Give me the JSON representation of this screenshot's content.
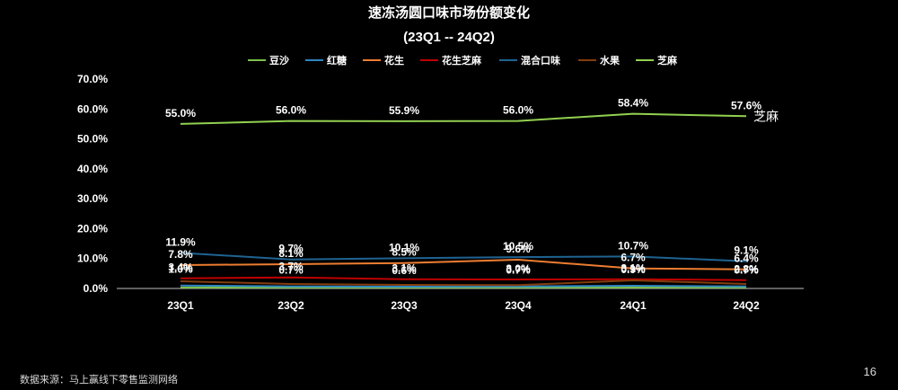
{
  "chart_data": {
    "type": "line",
    "title": "速冻汤圆口味市场份额变化",
    "subtitle": "(23Q1 -- 24Q2)",
    "categories": [
      "23Q1",
      "23Q2",
      "23Q3",
      "23Q4",
      "24Q1",
      "24Q2"
    ],
    "yticks": [
      "0.0%",
      "10.0%",
      "20.0%",
      "30.0%",
      "40.0%",
      "50.0%",
      "60.0%",
      "70.0%"
    ],
    "ylim": [
      0,
      70
    ],
    "legend_position": "top-center",
    "series": [
      {
        "name": "豆沙",
        "color": "#7CC04B",
        "values": [
          0.3,
          0.3,
          0.3,
          0.3,
          0.3,
          0.3
        ],
        "labels": [
          "",
          "",
          "",
          "",
          "",
          ""
        ]
      },
      {
        "name": "红糖",
        "color": "#2E86C1",
        "values": [
          1.0,
          0.7,
          0.6,
          0.7,
          0.9,
          0.7
        ],
        "labels": [
          "1.0%",
          "0.7%",
          "0.6%",
          "0.7%",
          "0.9%",
          "0.7%"
        ]
      },
      {
        "name": "花生",
        "color": "#ED7D31",
        "values": [
          7.8,
          8.1,
          8.5,
          9.6,
          6.7,
          6.4
        ],
        "labels": [
          "7.8%",
          "8.1%",
          "8.5%",
          "9.6%",
          "6.7%",
          "6.4%"
        ]
      },
      {
        "name": "花生芝麻",
        "color": "#C00000",
        "values": [
          3.4,
          3.7,
          3.1,
          3.0,
          3.1,
          2.8
        ],
        "labels": [
          "3.4%",
          "3.7%",
          "3.1%",
          "3.0%",
          "3.1%",
          "2.8%"
        ]
      },
      {
        "name": "混合口味",
        "color": "#1F6391",
        "values": [
          11.9,
          9.7,
          10.1,
          10.5,
          10.7,
          9.1
        ],
        "labels": [
          "11.9%",
          "9.7%",
          "10.1%",
          "10.5%",
          "10.7%",
          "9.1%"
        ]
      },
      {
        "name": "水果",
        "color": "#843C0C",
        "values": [
          2.4,
          1.5,
          1.2,
          1.1,
          2.7,
          1.5
        ],
        "labels": [
          "",
          "",
          "",
          "",
          "",
          ""
        ]
      },
      {
        "name": "芝麻",
        "color": "#92D050",
        "values": [
          55.0,
          56.0,
          55.9,
          56.0,
          58.4,
          57.6
        ],
        "labels": [
          "55.0%",
          "56.0%",
          "55.9%",
          "56.0%",
          "58.4%",
          "57.6%"
        ],
        "end_label": "芝麻"
      }
    ]
  },
  "footer": {
    "source": "数据来源：马上赢线下零售监测网络",
    "page_number": "16"
  }
}
